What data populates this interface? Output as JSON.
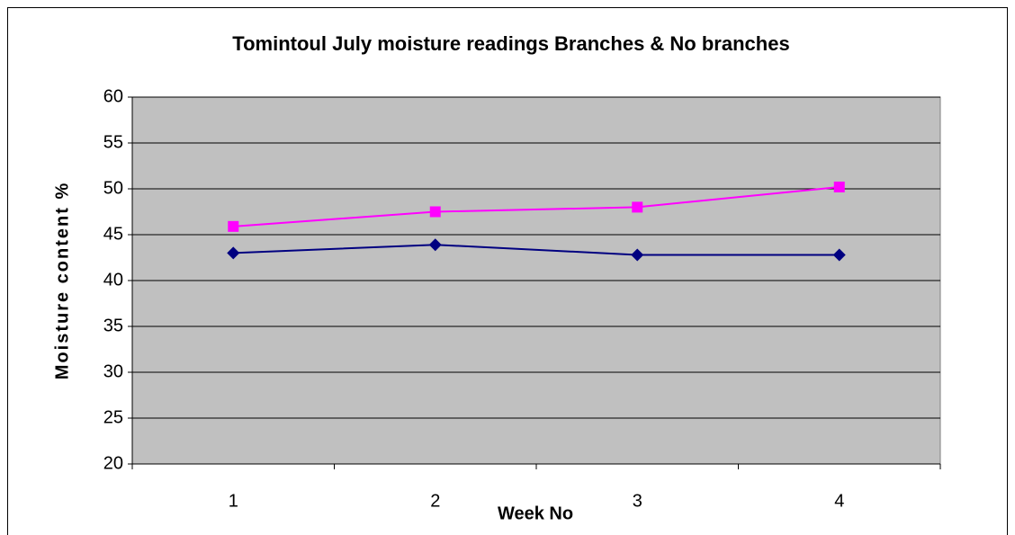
{
  "chart_data": {
    "type": "line",
    "title": "Tomintoul July moisture readings Branches & No branches",
    "x_label": "Week No",
    "y_label": "Moisture content %",
    "categories": [
      "1",
      "2",
      "3",
      "4"
    ],
    "series": [
      {
        "color": "#ff00ff",
        "marker": "square",
        "values": [
          45.9,
          47.5,
          48.0,
          50.2
        ]
      },
      {
        "color": "#000080",
        "marker": "diamond",
        "values": [
          43.0,
          43.9,
          42.8,
          42.8
        ]
      }
    ],
    "ylim": [
      20,
      60
    ],
    "yticks": [
      20,
      25,
      30,
      35,
      40,
      45,
      50,
      55,
      60
    ],
    "grid": true,
    "plot_background": "#c0c0c0"
  }
}
